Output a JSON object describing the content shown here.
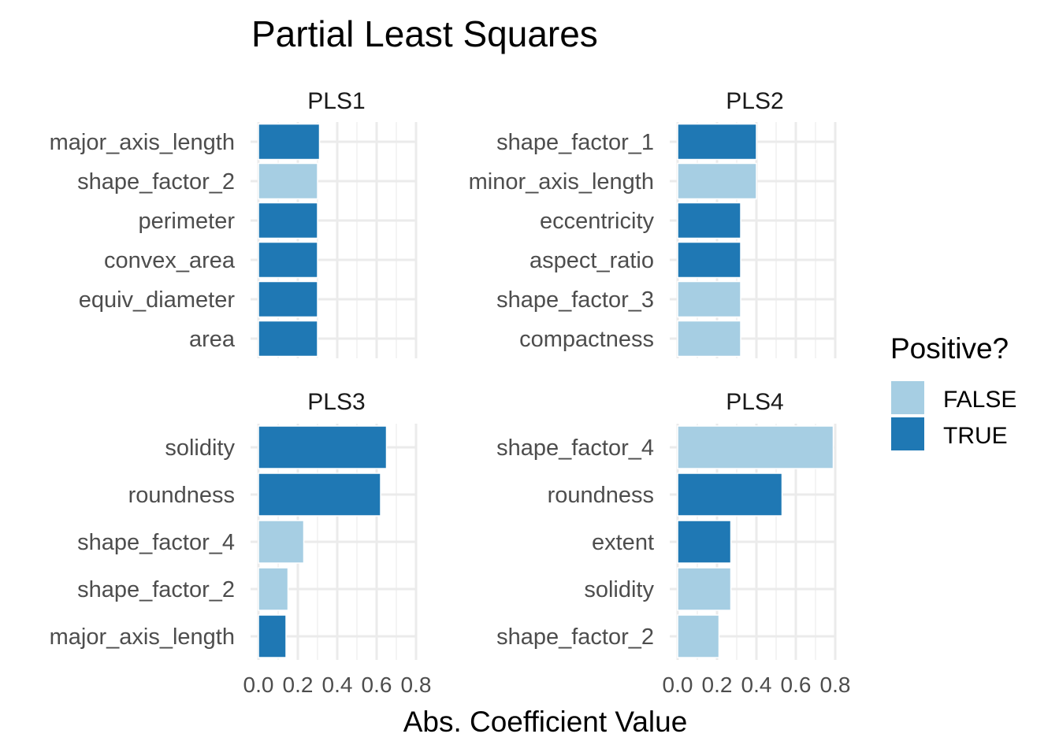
{
  "chart_data": {
    "type": "bar",
    "title": "Partial Least Squares",
    "xlabel": "Abs. Coefficient Value",
    "ylabel": "",
    "xlim": [
      0,
      0.8
    ],
    "x_ticks": [
      "0.0",
      "0.2",
      "0.4",
      "0.6",
      "0.8"
    ],
    "grid": true,
    "legend": {
      "title": "Positive?",
      "placement": "right",
      "entries": [
        {
          "label": "FALSE",
          "color": "#A6CEE3"
        },
        {
          "label": "TRUE",
          "color": "#1F78B4"
        }
      ]
    },
    "panels": [
      {
        "name": "PLS1",
        "bars": [
          {
            "term": "major_axis_length",
            "value": 0.31,
            "positive": true
          },
          {
            "term": "shape_factor_2",
            "value": 0.3,
            "positive": false
          },
          {
            "term": "perimeter",
            "value": 0.3,
            "positive": true
          },
          {
            "term": "convex_area",
            "value": 0.3,
            "positive": true
          },
          {
            "term": "equiv_diameter",
            "value": 0.3,
            "positive": true
          },
          {
            "term": "area",
            "value": 0.3,
            "positive": true
          }
        ]
      },
      {
        "name": "PLS2",
        "bars": [
          {
            "term": "shape_factor_1",
            "value": 0.4,
            "positive": true
          },
          {
            "term": "minor_axis_length",
            "value": 0.4,
            "positive": false
          },
          {
            "term": "eccentricity",
            "value": 0.32,
            "positive": true
          },
          {
            "term": "aspect_ratio",
            "value": 0.32,
            "positive": true
          },
          {
            "term": "shape_factor_3",
            "value": 0.32,
            "positive": false
          },
          {
            "term": "compactness",
            "value": 0.32,
            "positive": false
          }
        ]
      },
      {
        "name": "PLS3",
        "bars": [
          {
            "term": "solidity",
            "value": 0.65,
            "positive": true
          },
          {
            "term": "roundness",
            "value": 0.62,
            "positive": true
          },
          {
            "term": "shape_factor_4",
            "value": 0.23,
            "positive": false
          },
          {
            "term": "shape_factor_2",
            "value": 0.15,
            "positive": false
          },
          {
            "term": "major_axis_length",
            "value": 0.14,
            "positive": true
          }
        ]
      },
      {
        "name": "PLS4",
        "bars": [
          {
            "term": "shape_factor_4",
            "value": 0.79,
            "positive": false
          },
          {
            "term": "roundness",
            "value": 0.53,
            "positive": true
          },
          {
            "term": "extent",
            "value": 0.27,
            "positive": true
          },
          {
            "term": "solidity",
            "value": 0.27,
            "positive": false
          },
          {
            "term": "shape_factor_2",
            "value": 0.21,
            "positive": false
          }
        ]
      }
    ]
  }
}
